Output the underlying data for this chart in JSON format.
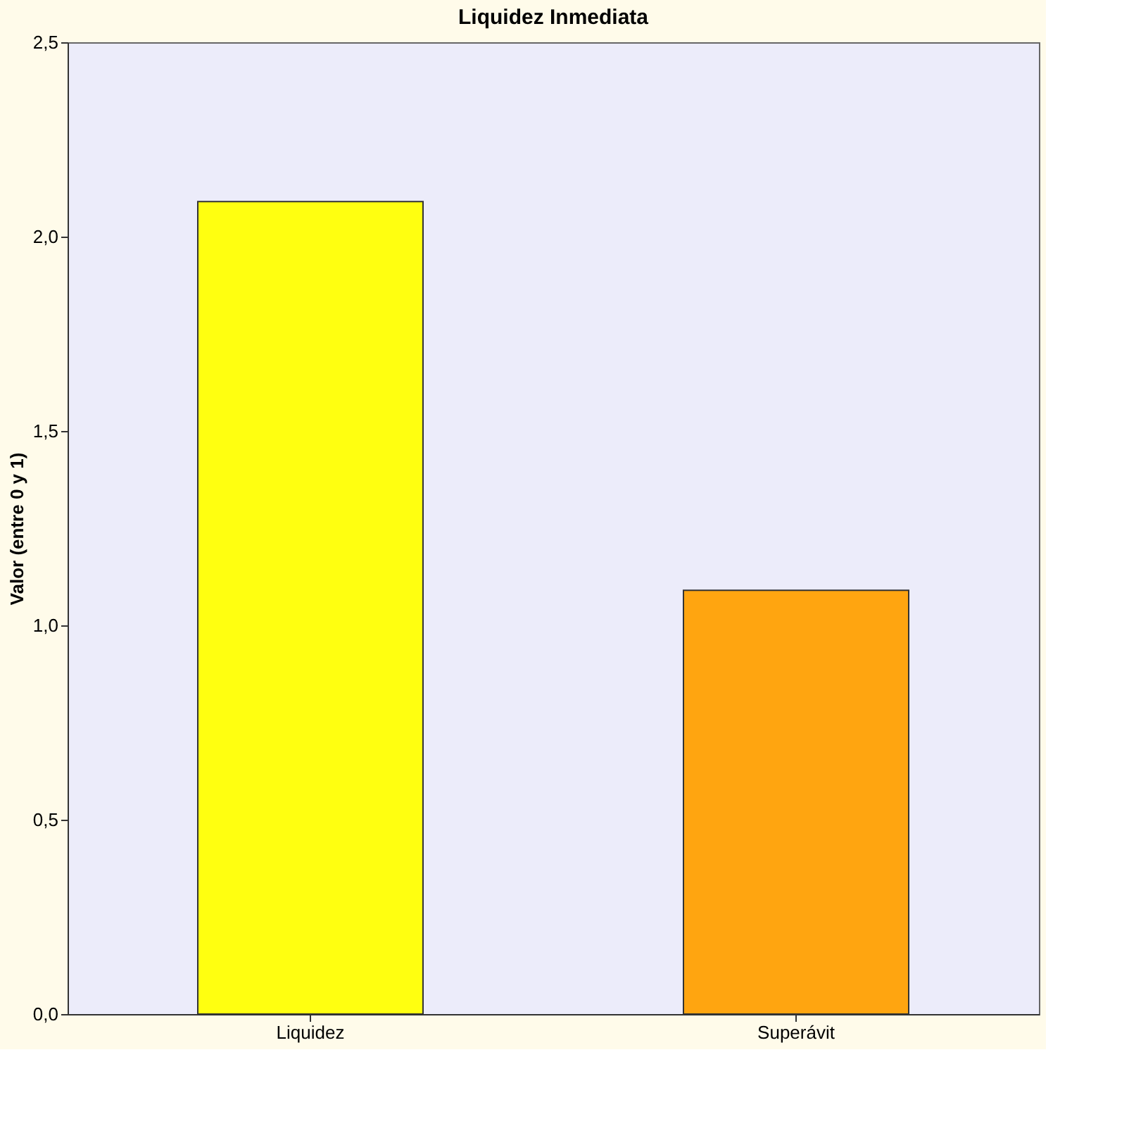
{
  "chart_data": {
    "type": "bar",
    "title": "Liquidez Inmediata",
    "ylabel": "Valor (entre 0 y 1)",
    "categories": [
      "Liquidez",
      "Superávit"
    ],
    "values": [
      2.09,
      1.09
    ],
    "colors": [
      "#ffff10",
      "#ffa510"
    ],
    "ylim": [
      0,
      2.5
    ],
    "yticks": [
      {
        "value": 0,
        "label": "0,0"
      },
      {
        "value": 0.5,
        "label": "0,5"
      },
      {
        "value": 1,
        "label": "1,0"
      },
      {
        "value": 1.5,
        "label": "1,5"
      },
      {
        "value": 2,
        "label": "2,0"
      },
      {
        "value": 2.5,
        "label": "2,5"
      }
    ],
    "grid": false
  }
}
